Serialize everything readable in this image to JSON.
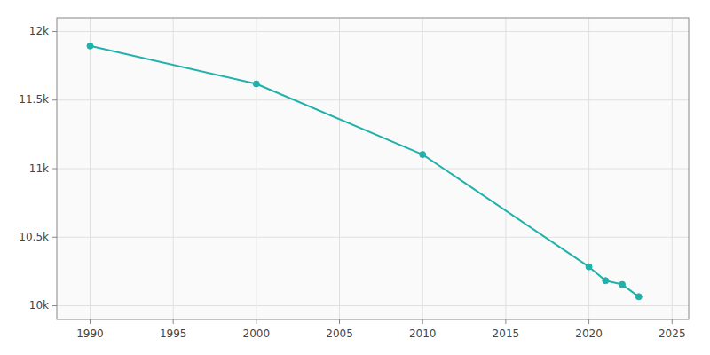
{
  "chart_data": {
    "type": "line",
    "x": [
      1990,
      2000,
      2010,
      2020,
      2021,
      2022,
      2023
    ],
    "values": [
      11894,
      11618,
      11103,
      10284,
      10183,
      10155,
      10066
    ],
    "color": "#20B2AA",
    "marker": "circle",
    "xlim": [
      1988,
      2026
    ],
    "ylim": [
      9900,
      12100
    ],
    "xticks": [
      1990,
      1995,
      2000,
      2005,
      2010,
      2015,
      2020,
      2025
    ],
    "yticks": [
      {
        "value": 10000,
        "label": "10k"
      },
      {
        "value": 10500,
        "label": "10.5k"
      },
      {
        "value": 11000,
        "label": "11k"
      },
      {
        "value": 11500,
        "label": "11.5k"
      },
      {
        "value": 12000,
        "label": "12k"
      }
    ],
    "grid": true
  }
}
